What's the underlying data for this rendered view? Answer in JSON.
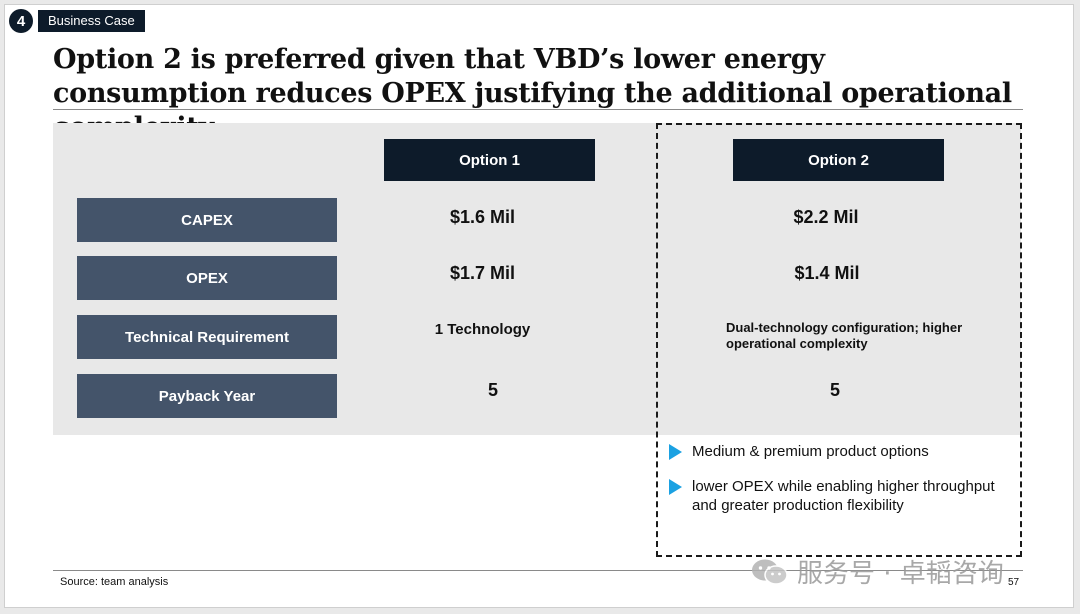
{
  "header": {
    "section_number": "4",
    "section_tag": "Business Case"
  },
  "title": "Option 2 is preferred given that VBD’s lower energy consumption reduces OPEX justifying the additional operational complexity",
  "table": {
    "columns": [
      "Option 1",
      "Option 2"
    ],
    "rows": [
      {
        "label": "CAPEX",
        "option1": "$1.6 Mil",
        "option2": "$2.2 Mil"
      },
      {
        "label": "OPEX",
        "option1": "$1.7 Mil",
        "option2": "$1.4 Mil"
      },
      {
        "label": "Technical Requirement",
        "option1": "1 Technology",
        "option2": "Dual-technology configuration; higher operational complexity"
      },
      {
        "label": "Payback Year",
        "option1": "5",
        "option2": "5"
      }
    ]
  },
  "option2_bullets": [
    "Medium & premium product options",
    "lower OPEX while enabling higher throughput and greater production flexibility"
  ],
  "footer": {
    "source": "Source: team analysis",
    "page_number": "57"
  },
  "watermark": {
    "text": "服务号 · 卓韬咨询",
    "icon": "wechat-icon"
  },
  "colors": {
    "navy": "#0d1b2a",
    "label_slate": "#44546a",
    "table_bg": "#e8e8e8",
    "bullet_blue": "#1ba1e2"
  }
}
